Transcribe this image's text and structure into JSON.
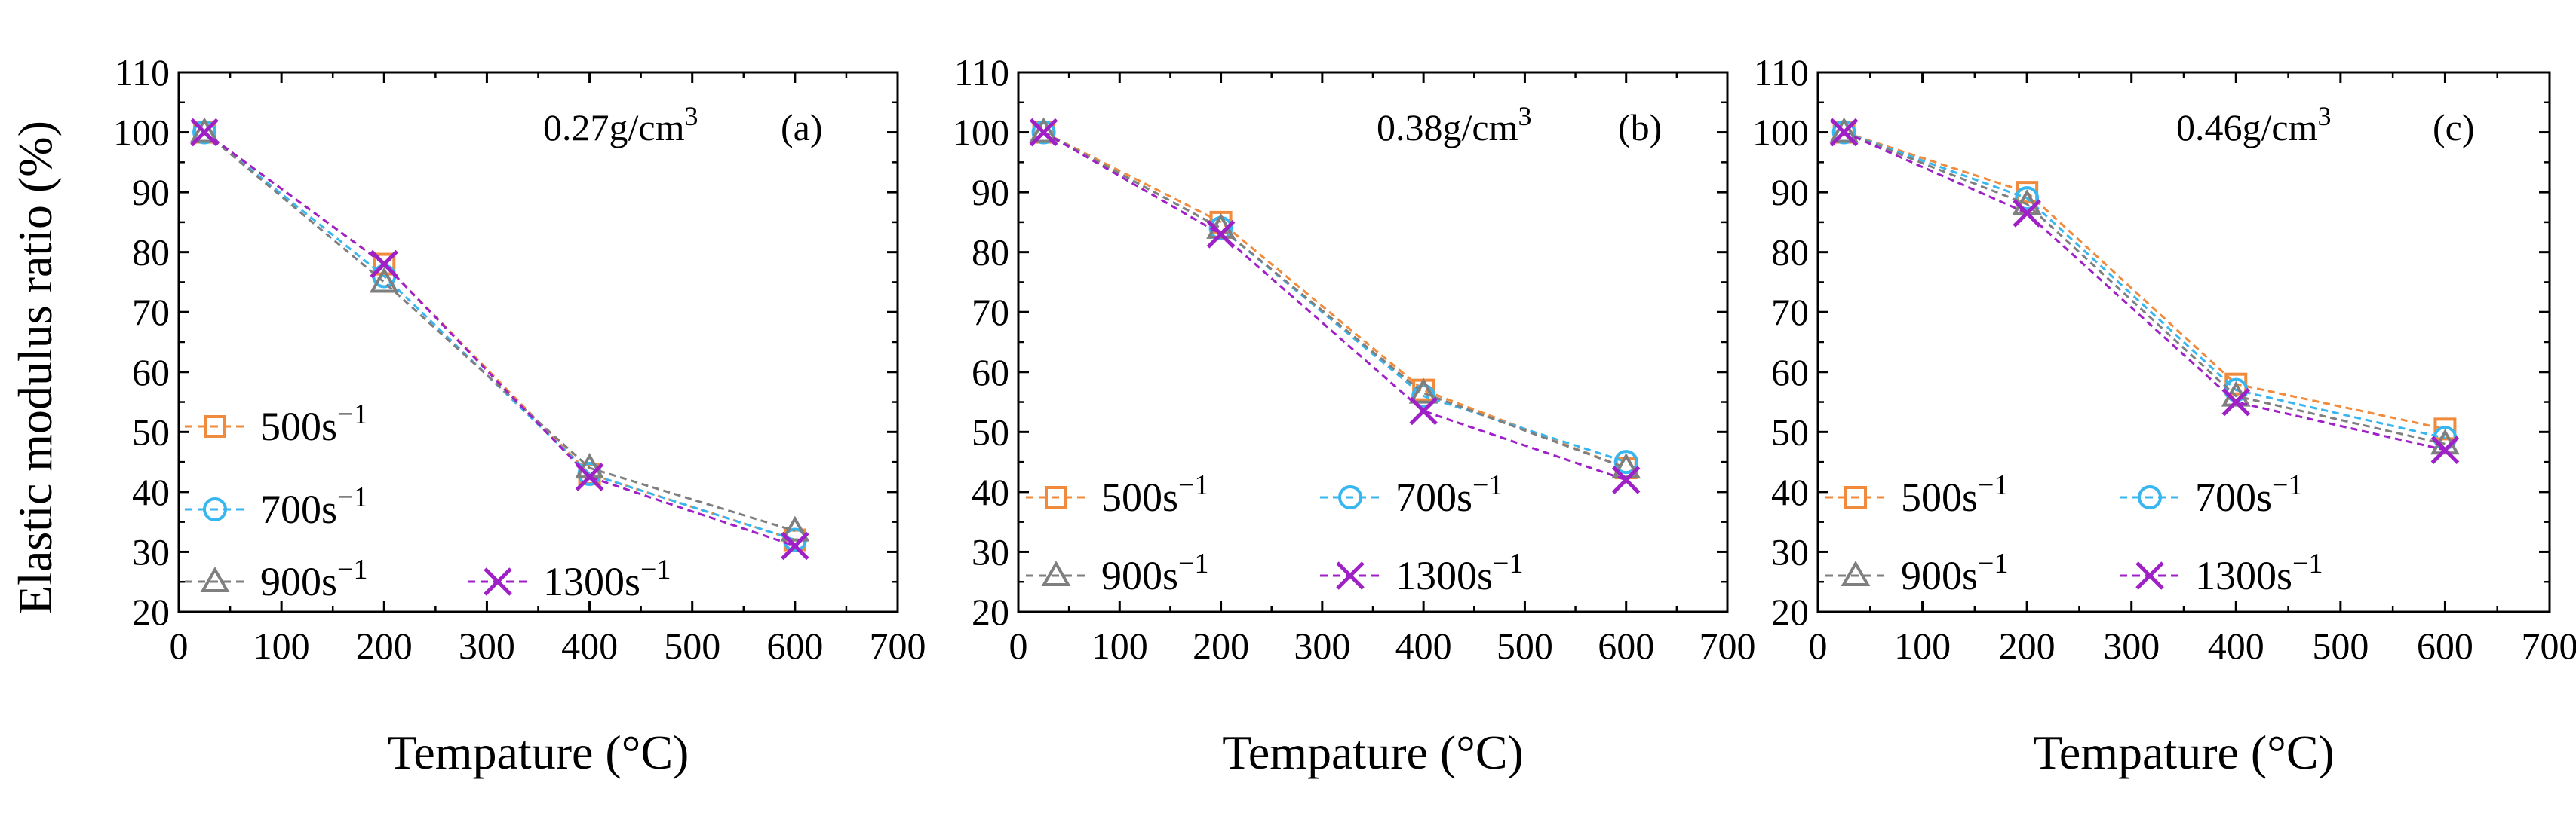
{
  "figure": {
    "ylabel_shared": "Elastic modulus ratio (%)"
  },
  "series_styles": [
    {
      "name": "500s−1",
      "marker": "square",
      "color": "#F08A3C"
    },
    {
      "name": "700s−1",
      "marker": "circle",
      "color": "#38B6F0"
    },
    {
      "name": "900s−1",
      "marker": "triangle",
      "color": "#7F7F7F"
    },
    {
      "name": "1300s−1",
      "marker": "cross",
      "color": "#A020C8"
    }
  ],
  "chart_data": [
    {
      "type": "line",
      "panel": "(a)",
      "title": "0.27g/cm3",
      "title_base": "0.27g/cm",
      "title_sup": "3",
      "xlabel": "Tempature (°C)",
      "ylabel": "Elastic modulus ratio (%)",
      "xlim": [
        0,
        700
      ],
      "ylim": [
        20,
        110
      ],
      "xticks": [
        0,
        100,
        200,
        300,
        400,
        500,
        600,
        700
      ],
      "yticks": [
        20,
        30,
        40,
        50,
        60,
        70,
        80,
        90,
        100,
        110
      ],
      "legend_layout": "stacked",
      "x": [
        25,
        200,
        400,
        600
      ],
      "series": [
        {
          "name": "500s−1",
          "values": [
            100,
            78,
            43,
            32
          ]
        },
        {
          "name": "700s−1",
          "values": [
            100,
            76,
            43,
            32
          ]
        },
        {
          "name": "900s−1",
          "values": [
            100,
            75,
            44,
            33.5
          ]
        },
        {
          "name": "1300s−1",
          "values": [
            100,
            78,
            42.5,
            31
          ]
        }
      ]
    },
    {
      "type": "line",
      "panel": "(b)",
      "title": "0.38g/cm3",
      "title_base": "0.38g/cm",
      "title_sup": "3",
      "xlabel": "Tempature (°C)",
      "ylabel": "",
      "xlim": [
        0,
        700
      ],
      "ylim": [
        20,
        110
      ],
      "xticks": [
        0,
        100,
        200,
        300,
        400,
        500,
        600,
        700
      ],
      "yticks": [
        20,
        30,
        40,
        50,
        60,
        70,
        80,
        90,
        100,
        110
      ],
      "legend_layout": "grid",
      "x": [
        25,
        200,
        400,
        600
      ],
      "series": [
        {
          "name": "500s−1",
          "values": [
            100,
            85,
            57,
            44
          ]
        },
        {
          "name": "700s−1",
          "values": [
            100,
            84,
            56,
            45
          ]
        },
        {
          "name": "900s−1",
          "values": [
            100,
            84,
            56.5,
            44
          ]
        },
        {
          "name": "1300s−1",
          "values": [
            100,
            83,
            53.5,
            42
          ]
        }
      ]
    },
    {
      "type": "line",
      "panel": "(c)",
      "title": "0.46g/cm3",
      "title_base": "0.46g/cm",
      "title_sup": "3",
      "xlabel": "Tempature (°C)",
      "ylabel": "",
      "xlim": [
        0,
        700
      ],
      "ylim": [
        20,
        110
      ],
      "xticks": [
        0,
        100,
        200,
        300,
        400,
        500,
        600,
        700
      ],
      "yticks": [
        20,
        30,
        40,
        50,
        60,
        70,
        80,
        90,
        100,
        110
      ],
      "legend_layout": "grid",
      "x": [
        25,
        200,
        400,
        600
      ],
      "series": [
        {
          "name": "500s−1",
          "values": [
            100,
            90,
            58,
            50.5
          ]
        },
        {
          "name": "700s−1",
          "values": [
            100,
            89,
            57,
            49
          ]
        },
        {
          "name": "900s−1",
          "values": [
            100,
            88,
            56,
            48
          ]
        },
        {
          "name": "1300s−1",
          "values": [
            100,
            86.5,
            55,
            47
          ]
        }
      ]
    }
  ]
}
